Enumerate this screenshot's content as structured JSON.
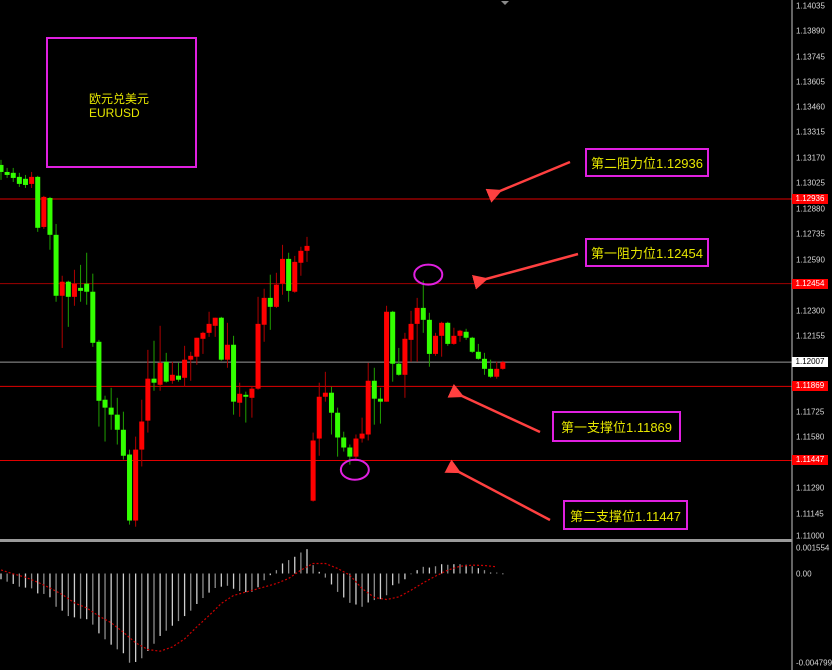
{
  "symbol": {
    "name_cn": "欧元兑美元",
    "name": "EURUSD"
  },
  "colors": {
    "background": "#000000",
    "bull_candle": "#ff0000",
    "bear_candle": "#33ff00",
    "resistance_line": "#e00000",
    "current_price_line": "#9a9a9a",
    "annotation_text": "#e6e600",
    "annotation_border": "#e020e0",
    "arrow": "#ff4040",
    "histogram": "#cfcfcf",
    "signal_line": "#cc0000"
  },
  "annotations": [
    {
      "label": "第二阻力位1.12936",
      "level": 1.12936
    },
    {
      "label": "第一阻力位1.12454",
      "level": 1.12454
    },
    {
      "label": "第一支撑位1.11869",
      "level": 1.11869
    },
    {
      "label": "第二支撑位1.11447",
      "level": 1.11447
    }
  ],
  "chart_data": [
    {
      "type": "candlestick",
      "ylim": [
        1.11,
        1.14035
      ],
      "y_tick_labels": [
        "1.14035",
        "1.13890",
        "1.13745",
        "1.13605",
        "1.13460",
        "1.13315",
        "1.13170",
        "1.13025",
        "1.12880",
        "1.12735",
        "1.12590",
        "1.12300",
        "1.12155",
        "1.11725",
        "1.11580",
        "1.11290",
        "1.11145",
        "1.11000"
      ],
      "price_tags": [
        {
          "label": "1.12936",
          "kind": "level"
        },
        {
          "label": "1.12454",
          "kind": "level"
        },
        {
          "label": "1.12007",
          "kind": "current"
        },
        {
          "label": "1.11869",
          "kind": "level"
        },
        {
          "label": "1.11447",
          "kind": "level"
        }
      ],
      "ohlc": [
        [
          1.1313,
          1.13159,
          1.13045,
          1.1309
        ],
        [
          1.1309,
          1.13113,
          1.13056,
          1.13073
        ],
        [
          1.13085,
          1.13113,
          1.13033,
          1.13056
        ],
        [
          1.13062,
          1.13085,
          1.13005,
          1.13022
        ],
        [
          1.13051,
          1.13073,
          1.12999,
          1.13016
        ],
        [
          1.13022,
          1.1309,
          1.12999,
          1.13062
        ],
        [
          1.13062,
          1.13068,
          1.12749,
          1.12772
        ],
        [
          1.12777,
          1.12954,
          1.12766,
          1.12948
        ],
        [
          1.12942,
          1.12948,
          1.12647,
          1.12732
        ],
        [
          1.12732,
          1.12794,
          1.12351,
          1.12385
        ],
        [
          1.12385,
          1.12499,
          1.12088,
          1.12465
        ],
        [
          1.12465,
          1.12471,
          1.12208,
          1.12379
        ],
        [
          1.12379,
          1.12533,
          1.12328,
          1.12454
        ],
        [
          1.1243,
          1.12561,
          1.12351,
          1.12413
        ],
        [
          1.12454,
          1.1263,
          1.12334,
          1.12408
        ],
        [
          1.12408,
          1.12511,
          1.12094,
          1.12117
        ],
        [
          1.12123,
          1.12134,
          1.1164,
          1.11787
        ],
        [
          1.11793,
          1.11816,
          1.11555,
          1.11748
        ],
        [
          1.11748,
          1.11861,
          1.11622,
          1.11708
        ],
        [
          1.11708,
          1.11804,
          1.11538,
          1.11622
        ],
        [
          1.11622,
          1.11725,
          1.11452,
          1.11474
        ],
        [
          1.11481,
          1.11509,
          1.11082,
          1.11105
        ],
        [
          1.11105,
          1.11583,
          1.1107,
          1.11509
        ],
        [
          1.11509,
          1.11793,
          1.11413,
          1.11669
        ],
        [
          1.11674,
          1.12077,
          1.11606,
          1.11913
        ],
        [
          1.11913,
          1.12129,
          1.11844,
          1.1189
        ],
        [
          1.11878,
          1.12214,
          1.11844,
          1.12003
        ],
        [
          1.12009,
          1.1206,
          1.1189,
          1.11896
        ],
        [
          1.11901,
          1.12009,
          1.11884,
          1.11935
        ],
        [
          1.1193,
          1.12003,
          1.11896,
          1.11907
        ],
        [
          1.11918,
          1.121,
          1.11867,
          1.12021
        ],
        [
          1.12021,
          1.12066,
          1.11901,
          1.12043
        ],
        [
          1.12038,
          1.12146,
          1.11992,
          1.12146
        ],
        [
          1.1214,
          1.1218,
          1.12054,
          1.12174
        ],
        [
          1.12174,
          1.12294,
          1.12151,
          1.12225
        ],
        [
          1.12214,
          1.1226,
          1.12151,
          1.1226
        ],
        [
          1.1226,
          1.12265,
          1.12015,
          1.12021
        ],
        [
          1.12021,
          1.12231,
          1.11975,
          1.12106
        ],
        [
          1.12106,
          1.12157,
          1.11708,
          1.11782
        ],
        [
          1.11776,
          1.1189,
          1.11696,
          1.11827
        ],
        [
          1.11821,
          1.11839,
          1.11663,
          1.1181
        ],
        [
          1.11804,
          1.11867,
          1.11691,
          1.11856
        ],
        [
          1.11856,
          1.12379,
          1.1185,
          1.12225
        ],
        [
          1.1222,
          1.12425,
          1.12123,
          1.12373
        ],
        [
          1.12373,
          1.12505,
          1.12191,
          1.12322
        ],
        [
          1.12322,
          1.12516,
          1.12316,
          1.12448
        ],
        [
          1.12454,
          1.12675,
          1.12391,
          1.12595
        ],
        [
          1.12595,
          1.1263,
          1.12351,
          1.12413
        ],
        [
          1.12408,
          1.12612,
          1.12402,
          1.12578
        ],
        [
          1.12573,
          1.12664,
          1.12499,
          1.12641
        ],
        [
          1.12641,
          1.1272,
          1.12578,
          1.12669
        ],
        [
          1.11218,
          1.11606,
          1.11213,
          1.11561
        ],
        [
          1.11572,
          1.1189,
          1.11474,
          1.1181
        ],
        [
          1.1181,
          1.11952,
          1.11782,
          1.11833
        ],
        [
          1.11833,
          1.11867,
          1.11595,
          1.11719
        ],
        [
          1.11719,
          1.11748,
          1.11469,
          1.11578
        ],
        [
          1.11578,
          1.11611,
          1.11498,
          1.11521
        ],
        [
          1.11521,
          1.11538,
          1.11423,
          1.11469
        ],
        [
          1.11469,
          1.11595,
          1.11452,
          1.11572
        ],
        [
          1.11572,
          1.11691,
          1.11549,
          1.116
        ],
        [
          1.11595,
          1.12003,
          1.11561,
          1.11901
        ],
        [
          1.11901,
          1.11975,
          1.11651,
          1.11799
        ],
        [
          1.11799,
          1.11861,
          1.11657,
          1.11782
        ],
        [
          1.11782,
          1.12328,
          1.11782,
          1.12294
        ],
        [
          1.12294,
          1.12299,
          1.11896,
          1.11998
        ],
        [
          1.11998,
          1.12088,
          1.1193,
          1.11935
        ],
        [
          1.11935,
          1.12174,
          1.11804,
          1.1214
        ],
        [
          1.12134,
          1.12299,
          1.12009,
          1.12225
        ],
        [
          1.12225,
          1.12373,
          1.12009,
          1.12316
        ],
        [
          1.12316,
          1.12471,
          1.12174,
          1.12248
        ],
        [
          1.12248,
          1.12288,
          1.11981,
          1.12054
        ],
        [
          1.12054,
          1.12174,
          1.12043,
          1.12157
        ],
        [
          1.12157,
          1.12237,
          1.12038,
          1.12231
        ],
        [
          1.12231,
          1.12237,
          1.121,
          1.12111
        ],
        [
          1.12111,
          1.12203,
          1.12106,
          1.12157
        ],
        [
          1.12157,
          1.12191,
          1.12123,
          1.12186
        ],
        [
          1.1218,
          1.12197,
          1.12134,
          1.12146
        ],
        [
          1.12146,
          1.12151,
          1.1206,
          1.12066
        ],
        [
          1.12066,
          1.12111,
          1.12021,
          1.12026
        ],
        [
          1.12026,
          1.1206,
          1.11935,
          1.11969
        ],
        [
          1.11969,
          1.12021,
          1.11918,
          1.11924
        ],
        [
          1.11924,
          1.12009,
          1.11913,
          1.11969
        ],
        [
          1.11969,
          1.12015,
          1.11964,
          1.12007
        ]
      ],
      "horizontal_levels": [
        {
          "value": 1.12936,
          "kind": "resistance"
        },
        {
          "value": 1.12454,
          "kind": "resistance"
        },
        {
          "value": 1.12007,
          "kind": "current"
        },
        {
          "value": 1.11869,
          "kind": "support"
        },
        {
          "value": 1.11447,
          "kind": "support"
        }
      ],
      "highlighted_bars": [
        70,
        58
      ]
    },
    {
      "type": "bar",
      "ylim": [
        -0.004799,
        0.001554
      ],
      "y_tick_labels": [
        "0.001554",
        "0.00",
        "-0.004799"
      ],
      "histogram": [
        -0.00031,
        -0.00044,
        -0.00056,
        -0.00071,
        -0.00076,
        -0.0008,
        -0.00107,
        -0.0011,
        -0.00128,
        -0.00179,
        -0.002,
        -0.00229,
        -0.00236,
        -0.00243,
        -0.00246,
        -0.00275,
        -0.00322,
        -0.00354,
        -0.00383,
        -0.00408,
        -0.00429,
        -0.0048,
        -0.00476,
        -0.00456,
        -0.00417,
        -0.00378,
        -0.00336,
        -0.00308,
        -0.00281,
        -0.00256,
        -0.00229,
        -0.002,
        -0.00164,
        -0.00132,
        -0.00103,
        -0.00078,
        -0.00071,
        -0.00066,
        -0.00082,
        -0.00094,
        -0.001,
        -0.00099,
        -0.00074,
        -0.00036,
        -9e-05,
        0.00018,
        0.00054,
        0.00072,
        0.0009,
        0.00113,
        0.00131,
        0.00045,
        9e-05,
        -0.00022,
        -0.00059,
        -0.00099,
        -0.00129,
        -0.00158,
        -0.00167,
        -0.00179,
        -0.00156,
        -0.00143,
        -0.00138,
        -0.00117,
        -0.00063,
        -0.00054,
        -0.00031,
        -4e-05,
        0.00018,
        0.00036,
        0.00032,
        0.00039,
        0.0005,
        0.00047,
        0.0005,
        0.0005,
        0.00047,
        0.00039,
        0.00029,
        0.00018,
        5e-05,
        5e-05,
        -4e-05
      ],
      "signal": [
        {
          "bar": 1,
          "value": 0.00019
        },
        {
          "bar": 3,
          "value": -2e-05
        },
        {
          "bar": 5,
          "value": -0.0002
        },
        {
          "bar": 7,
          "value": -0.00047
        },
        {
          "bar": 9,
          "value": -0.00078
        },
        {
          "bar": 11,
          "value": -0.00113
        },
        {
          "bar": 13,
          "value": -0.00158
        },
        {
          "bar": 15,
          "value": -0.00185
        },
        {
          "bar": 17,
          "value": -0.00229
        },
        {
          "bar": 19,
          "value": -0.00265
        },
        {
          "bar": 21,
          "value": -0.00316
        },
        {
          "bar": 23,
          "value": -0.00373
        },
        {
          "bar": 25,
          "value": -0.00409
        },
        {
          "bar": 27,
          "value": -0.00418
        },
        {
          "bar": 29,
          "value": -0.00395
        },
        {
          "bar": 31,
          "value": -0.00352
        },
        {
          "bar": 33,
          "value": -0.00287
        },
        {
          "bar": 35,
          "value": -0.00226
        },
        {
          "bar": 37,
          "value": -0.00161
        },
        {
          "bar": 39,
          "value": -0.00118
        },
        {
          "bar": 41,
          "value": -0.001
        },
        {
          "bar": 43,
          "value": -0.00082
        },
        {
          "bar": 46,
          "value": -0.00054
        },
        {
          "bar": 48,
          "value": -0.00027
        },
        {
          "bar": 50,
          "value": 0.00018
        },
        {
          "bar": 52,
          "value": 0.00054
        },
        {
          "bar": 54,
          "value": 0.00054
        },
        {
          "bar": 56,
          "value": 0.00027
        },
        {
          "bar": 58,
          "value": -9e-05
        },
        {
          "bar": 60,
          "value": -0.00081
        },
        {
          "bar": 62,
          "value": -0.00129
        },
        {
          "bar": 64,
          "value": -0.0014
        },
        {
          "bar": 66,
          "value": -0.00126
        },
        {
          "bar": 68,
          "value": -0.0009
        },
        {
          "bar": 70,
          "value": -0.0005
        },
        {
          "bar": 72,
          "value": -0.00014
        },
        {
          "bar": 74,
          "value": 0.00018
        },
        {
          "bar": 76,
          "value": 0.00039
        },
        {
          "bar": 78,
          "value": 0.00045
        },
        {
          "bar": 80,
          "value": 0.00043
        },
        {
          "bar": 82,
          "value": 0.00036
        }
      ]
    }
  ]
}
